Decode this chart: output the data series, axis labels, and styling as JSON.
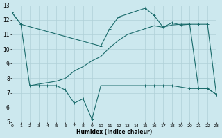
{
  "xlabel": "Humidex (Indice chaleur)",
  "bg_color": "#cce8ee",
  "grid_color": "#b0d0d8",
  "line_color": "#1a6b6b",
  "xlim": [
    0,
    23
  ],
  "ylim": [
    5,
    13
  ],
  "xticks": [
    0,
    1,
    2,
    3,
    4,
    5,
    6,
    7,
    8,
    9,
    10,
    11,
    12,
    13,
    14,
    15,
    16,
    17,
    18,
    19,
    20,
    21,
    22,
    23
  ],
  "yticks": [
    5,
    6,
    7,
    8,
    9,
    10,
    11,
    12,
    13
  ],
  "curve_a_x": [
    0,
    1,
    2,
    3,
    4,
    5,
    6,
    7,
    8,
    9,
    10,
    11,
    12,
    13,
    15,
    16,
    17,
    18,
    20,
    21,
    22,
    23
  ],
  "curve_a_y": [
    12.5,
    11.7,
    7.5,
    7.5,
    7.5,
    7.5,
    7.2,
    6.3,
    6.6,
    5.2,
    7.5,
    7.5,
    7.5,
    7.5,
    7.5,
    7.5,
    7.5,
    7.5,
    7.3,
    7.3,
    7.3,
    6.9
  ],
  "curve_b_x": [
    0,
    1,
    10,
    11,
    12,
    13,
    15,
    16,
    17,
    18,
    19,
    20,
    21,
    22,
    23
  ],
  "curve_b_y": [
    12.5,
    11.7,
    10.2,
    11.4,
    12.2,
    12.4,
    12.8,
    12.3,
    11.5,
    11.8,
    11.65,
    11.7,
    11.7,
    11.7,
    6.9
  ],
  "curve_c_x": [
    2,
    3,
    4,
    5,
    6,
    7,
    8,
    9,
    10,
    11,
    12,
    13,
    14,
    15,
    16,
    17,
    18,
    19,
    20,
    21,
    22,
    23
  ],
  "curve_c_y": [
    7.5,
    7.6,
    7.7,
    7.8,
    8.0,
    8.5,
    8.8,
    9.2,
    9.5,
    10.1,
    10.6,
    11.0,
    11.2,
    11.4,
    11.6,
    11.5,
    11.65,
    11.7,
    11.7,
    7.3,
    7.3,
    6.9
  ]
}
